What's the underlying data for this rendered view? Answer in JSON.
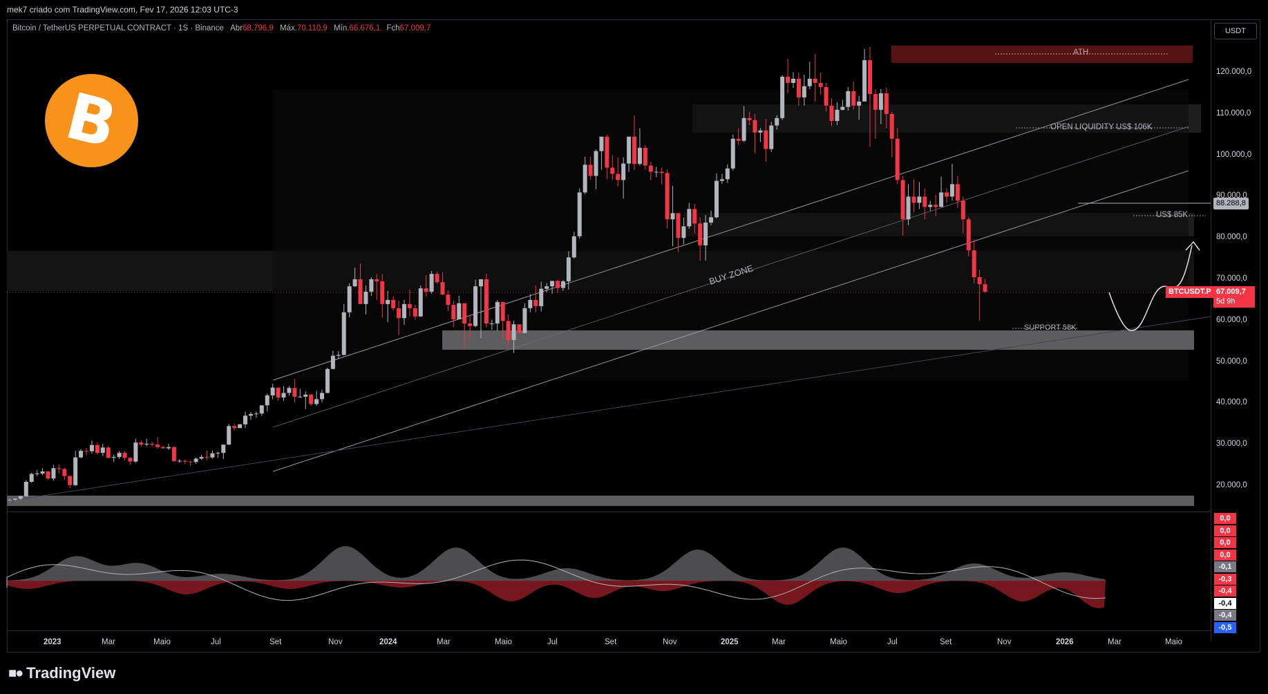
{
  "header": {
    "author_line": "mek7 criado com TradingView.com, Fev 17, 2026 12:03 UTC-3"
  },
  "symbol_line": {
    "name": "Bitcoin / TetherUS PERPETUAL CONTRACT · 1S · Binance",
    "open_label": "Abr",
    "open_value": "68.796,9",
    "high_label": "Máx.",
    "high_value": "70.110,9",
    "low_label": "Mín.",
    "low_value": "66.676,1",
    "close_label": "Fch",
    "close_value": "67.009,7"
  },
  "price_axis": {
    "unit": "USDT",
    "labels": [
      "120.000,0",
      "110.000,0",
      "100.000,0",
      "90.000,0",
      "80.000,0",
      "70.000,0",
      "60.000,0",
      "50.000,0",
      "40.000,0",
      "30.000,0",
      "20.000,0"
    ]
  },
  "tags": {
    "level_88": "88.288,8",
    "symbol": "BTCUSDT.P",
    "last_price": "67.009,7",
    "countdown": "5d 9h"
  },
  "annotations": {
    "ath": "ATH",
    "open_liquidity": "OPEN LIQUIDITY US$ 106K",
    "us85k": "US$ 85K",
    "buy_zone": "BUY ZONE",
    "support": "SUPPORT 58K"
  },
  "time_axis": {
    "labels": [
      "2023",
      "Mar",
      "Maio",
      "Jul",
      "Set",
      "Nov",
      "2024",
      "Mar",
      "Maio",
      "Jul",
      "Set",
      "Nov",
      "2025",
      "Mar",
      "Maio",
      "Jul",
      "Set",
      "Nov",
      "2026",
      "Mar",
      "Maio"
    ]
  },
  "oscillator": {
    "values": [
      "0,0",
      "0,0",
      "0,0",
      "0,0",
      "-0,1",
      "-0,3",
      "-0,4",
      "-0,4",
      "-0,4",
      "-0,5"
    ],
    "colors": [
      "#f23645",
      "#f23645",
      "#f23645",
      "#f23645",
      "#787b86",
      "#f23645",
      "#f23645",
      "#ffffff",
      "#787b86",
      "#2962ff"
    ]
  },
  "logo": {
    "brand": "TradingView",
    "coin_symbol": "B"
  },
  "colors": {
    "up": "#b2b5be",
    "down": "#f23645",
    "bg": "#000000",
    "btc": "#f7931a"
  },
  "chart_data": {
    "type": "candlestick",
    "interval": "1 week",
    "ylim": [
      15000,
      127000
    ],
    "weeks_from": "2022-12-26",
    "candles": [
      [
        16.5,
        16.6,
        16.5,
        16.9
      ],
      [
        16.6,
        16.9,
        16.5,
        17.0
      ],
      [
        16.9,
        17.5,
        16.6,
        17.7
      ],
      [
        17.5,
        21.0,
        17.4,
        21.4
      ],
      [
        21.0,
        22.9,
        20.8,
        23.2
      ],
      [
        22.9,
        23.0,
        22.4,
        23.9
      ],
      [
        23.0,
        23.5,
        22.6,
        24.3
      ],
      [
        23.5,
        21.8,
        21.5,
        23.6
      ],
      [
        21.8,
        24.3,
        21.3,
        25.1
      ],
      [
        24.3,
        24.1,
        23.0,
        25.2
      ],
      [
        24.1,
        22.4,
        21.5,
        24.4
      ],
      [
        22.4,
        20.2,
        19.5,
        22.6
      ],
      [
        20.2,
        26.9,
        20.0,
        28.5
      ],
      [
        26.9,
        28.5,
        26.7,
        28.9
      ],
      [
        28.5,
        28.4,
        27.4,
        29.2
      ],
      [
        28.4,
        29.9,
        27.8,
        31.0
      ],
      [
        29.9,
        28.0,
        27.6,
        30.5
      ],
      [
        28.0,
        29.3,
        27.2,
        30.2
      ],
      [
        29.3,
        26.8,
        26.7,
        29.6
      ],
      [
        26.8,
        27.0,
        25.8,
        27.6
      ],
      [
        27.0,
        28.0,
        26.5,
        28.4
      ],
      [
        28.0,
        26.8,
        26.3,
        28.4
      ],
      [
        26.8,
        25.9,
        25.1,
        27.0
      ],
      [
        25.9,
        30.5,
        25.6,
        31.4
      ],
      [
        30.5,
        30.0,
        29.5,
        31.0
      ],
      [
        30.0,
        30.2,
        29.6,
        31.4
      ],
      [
        30.2,
        30.0,
        29.6,
        30.7
      ],
      [
        30.0,
        29.4,
        29.0,
        31.8
      ],
      [
        29.4,
        29.1,
        29.1,
        29.7
      ],
      [
        29.1,
        29.4,
        28.7,
        30.2
      ],
      [
        29.4,
        26.0,
        25.8,
        29.6
      ],
      [
        26.0,
        26.1,
        25.6,
        26.5
      ],
      [
        26.1,
        25.9,
        25.3,
        26.3
      ],
      [
        25.9,
        25.8,
        24.9,
        26.1
      ],
      [
        25.8,
        26.6,
        25.4,
        26.9
      ],
      [
        26.6,
        27.0,
        26.3,
        27.5
      ],
      [
        27.0,
        26.9,
        26.3,
        28.6
      ],
      [
        26.9,
        27.9,
        26.6,
        28.6
      ],
      [
        27.9,
        28.0,
        26.8,
        28.3
      ],
      [
        28.0,
        30.0,
        26.5,
        30.0
      ],
      [
        30.0,
        34.5,
        29.9,
        35.0
      ],
      [
        34.5,
        34.0,
        33.5,
        35.1
      ],
      [
        34.0,
        34.9,
        34.0,
        35.0
      ],
      [
        34.9,
        37.0,
        34.0,
        38.0
      ],
      [
        37.0,
        37.4,
        36.0,
        37.9
      ],
      [
        37.4,
        37.5,
        36.5,
        38.0
      ],
      [
        37.5,
        39.5,
        37.0,
        39.2
      ],
      [
        39.5,
        41.9,
        38.0,
        42.3
      ],
      [
        41.9,
        43.8,
        41.0,
        44.7
      ],
      [
        43.8,
        41.4,
        40.6,
        43.4
      ],
      [
        41.4,
        42.5,
        40.6,
        44.1
      ],
      [
        42.5,
        43.7,
        41.8,
        44.2
      ],
      [
        43.7,
        41.6,
        40.2,
        45.9
      ],
      [
        41.6,
        41.6,
        41.3,
        43.5
      ],
      [
        41.6,
        42.1,
        38.6,
        42.9
      ],
      [
        42.1,
        39.8,
        39.4,
        42.3
      ],
      [
        39.8,
        41.0,
        39.4,
        43.0
      ],
      [
        41.0,
        42.5,
        40.2,
        43.3
      ],
      [
        42.5,
        48.3,
        42.4,
        48.6
      ],
      [
        48.3,
        51.5,
        48.2,
        52.7
      ],
      [
        51.5,
        51.7,
        50.8,
        52.6
      ],
      [
        51.7,
        62.0,
        51.6,
        64.0
      ],
      [
        62.0,
        68.3,
        60.8,
        69.0
      ],
      [
        68.3,
        70.0,
        68.1,
        72.8
      ],
      [
        70.0,
        64.0,
        64.0,
        73.8
      ],
      [
        64.0,
        67.0,
        61.5,
        68.5
      ],
      [
        67.0,
        70.0,
        66.0,
        70.5
      ],
      [
        70.0,
        69.5,
        65.0,
        71.3
      ],
      [
        69.5,
        64.0,
        60.7,
        71.3
      ],
      [
        64.0,
        65.0,
        59.6,
        67.2
      ],
      [
        65.0,
        63.0,
        62.4,
        65.9
      ],
      [
        63.0,
        60.6,
        56.5,
        64.8
      ],
      [
        60.6,
        64.0,
        59.0,
        65.0
      ],
      [
        64.0,
        63.0,
        61.0,
        67.5
      ],
      [
        63.0,
        61.0,
        60.2,
        63.8
      ],
      [
        61.0,
        67.8,
        60.9,
        68.5
      ],
      [
        67.8,
        67.0,
        65.8,
        71.0
      ],
      [
        67.0,
        71.3,
        66.5,
        72.0
      ],
      [
        71.3,
        69.3,
        68.9,
        71.9
      ],
      [
        69.3,
        66.3,
        66.2,
        71.7
      ],
      [
        66.3,
        63.8,
        62.3,
        67.3
      ],
      [
        63.8,
        60.3,
        58.4,
        64.8
      ],
      [
        60.3,
        64.2,
        60.4,
        66.0
      ],
      [
        64.2,
        59.3,
        53.5,
        64.2
      ],
      [
        59.3,
        58.7,
        55.8,
        61.4
      ],
      [
        58.7,
        68.3,
        58.4,
        69.9
      ],
      [
        68.3,
        70.0,
        55.8,
        70.0
      ],
      [
        70.0,
        59.3,
        58.4,
        71.4
      ],
      [
        59.3,
        59.3,
        57.8,
        60.2
      ],
      [
        59.3,
        64.5,
        57.5,
        65.0
      ],
      [
        64.5,
        59.9,
        55.7,
        64.6
      ],
      [
        59.9,
        55.3,
        53.7,
        61.5
      ],
      [
        55.3,
        59.1,
        52.2,
        60.0
      ],
      [
        59.1,
        57.0,
        56.7,
        58.0
      ],
      [
        57.0,
        63.0,
        56.9,
        64.2
      ],
      [
        63.0,
        65.0,
        62.0,
        66.4
      ],
      [
        65.0,
        63.5,
        62.0,
        68.5
      ],
      [
        63.5,
        67.7,
        62.2,
        69.4
      ],
      [
        67.7,
        68.3,
        66.8,
        69.1
      ],
      [
        68.3,
        69.6,
        66.5,
        69.5
      ],
      [
        69.6,
        67.9,
        66.7,
        69.9
      ],
      [
        67.9,
        69.5,
        67.2,
        69.8
      ],
      [
        69.5,
        75.3,
        67.5,
        76.8
      ],
      [
        75.3,
        80.4,
        75.0,
        81.5
      ],
      [
        80.4,
        91.0,
        79.8,
        92.0
      ],
      [
        91.0,
        97.7,
        90.6,
        99.6
      ],
      [
        97.7,
        95.0,
        94.1,
        99.6
      ],
      [
        95.0,
        101.0,
        91.8,
        101.4
      ],
      [
        101.0,
        104.5,
        96.5,
        104.5
      ],
      [
        104.5,
        97.0,
        94.2,
        105.0
      ],
      [
        97.0,
        95.5,
        94.0,
        100.0
      ],
      [
        95.5,
        94.0,
        92.5,
        99.5
      ],
      [
        94.0,
        98.0,
        89.5,
        99.5
      ],
      [
        98.0,
        104.5,
        96.0,
        104.2
      ],
      [
        104.5,
        97.9,
        96.4,
        109.6
      ],
      [
        97.9,
        101.8,
        97.5,
        106.5
      ],
      [
        101.8,
        97.5,
        96.5,
        102.5
      ],
      [
        97.5,
        96.0,
        94.0,
        98.4
      ],
      [
        96.0,
        96.0,
        94.7,
        97.2
      ],
      [
        96.0,
        95.7,
        93.0,
        97.0
      ],
      [
        95.7,
        84.5,
        82.3,
        96.6
      ],
      [
        84.5,
        86.0,
        78.0,
        92.6
      ],
      [
        86.0,
        80.0,
        76.6,
        86.0
      ],
      [
        80.0,
        82.8,
        78.5,
        84.9
      ],
      [
        82.8,
        87.0,
        82.2,
        88.5
      ],
      [
        87.0,
        83.5,
        81.1,
        88.2
      ],
      [
        83.5,
        78.2,
        74.5,
        85.0
      ],
      [
        78.2,
        83.7,
        74.5,
        85.5
      ],
      [
        83.7,
        85.0,
        83.1,
        86.6
      ],
      [
        85.0,
        93.8,
        84.7,
        95.6
      ],
      [
        93.8,
        94.2,
        93.1,
        95.5
      ],
      [
        94.2,
        96.8,
        93.3,
        97.8
      ],
      [
        96.8,
        104.0,
        96.3,
        105.0
      ],
      [
        104.0,
        103.5,
        102.5,
        106.5
      ],
      [
        103.5,
        109.0,
        103.2,
        111.9
      ],
      [
        109.0,
        108.5,
        107.3,
        110.5
      ],
      [
        108.5,
        105.5,
        100.5,
        110.0
      ],
      [
        105.5,
        106.0,
        103.2,
        106.6
      ],
      [
        106.0,
        101.5,
        98.4,
        108.8
      ],
      [
        101.5,
        107.2,
        100.8,
        108.1
      ],
      [
        107.2,
        109.0,
        106.2,
        109.7
      ],
      [
        109.0,
        119.0,
        108.5,
        119.4
      ],
      [
        119.0,
        117.5,
        115.0,
        123.3
      ],
      [
        117.5,
        118.5,
        116.3,
        120.1
      ],
      [
        118.5,
        114.0,
        112.0,
        120.0
      ],
      [
        114.0,
        116.7,
        112.0,
        119.5
      ],
      [
        116.7,
        118.5,
        116.0,
        122.6
      ],
      [
        118.5,
        117.5,
        113.0,
        124.5
      ],
      [
        117.5,
        116.5,
        114.7,
        120.0
      ],
      [
        116.5,
        112.0,
        110.6,
        117.5
      ],
      [
        112.0,
        108.3,
        107.0,
        113.7
      ],
      [
        108.3,
        111.0,
        107.3,
        112.8
      ],
      [
        111.0,
        111.7,
        110.8,
        113.4
      ],
      [
        111.7,
        115.5,
        110.8,
        116.5
      ],
      [
        115.5,
        112.0,
        111.0,
        117.8
      ],
      [
        112.0,
        113.0,
        108.6,
        114.4
      ],
      [
        113.0,
        123.0,
        113.0,
        125.7
      ],
      [
        123.0,
        114.8,
        102.0,
        126.3
      ],
      [
        114.8,
        111.0,
        104.0,
        116.0
      ],
      [
        111.0,
        115.0,
        107.5,
        116.0
      ],
      [
        115.0,
        110.0,
        106.5,
        116.4
      ],
      [
        110.0,
        104.0,
        99.5,
        110.5
      ],
      [
        104.0,
        94.0,
        93.0,
        106.6
      ],
      [
        94.0,
        84.5,
        80.6,
        95.0
      ],
      [
        84.5,
        90.0,
        83.1,
        93.0
      ],
      [
        90.0,
        88.5,
        86.2,
        94.2
      ],
      [
        88.5,
        90.0,
        87.0,
        93.5
      ],
      [
        90.0,
        87.5,
        84.5,
        91.9
      ],
      [
        87.5,
        88.0,
        86.5,
        89.0
      ],
      [
        88.0,
        87.5,
        85.3,
        90.4
      ],
      [
        87.5,
        91.0,
        87.5,
        94.8
      ],
      [
        91.0,
        90.0,
        88.5,
        92.0
      ],
      [
        90.0,
        93.0,
        89.0,
        97.9
      ],
      [
        93.0,
        89.0,
        87.2,
        95.0
      ],
      [
        89.0,
        84.5,
        81.1,
        90.0
      ],
      [
        84.5,
        77.0,
        75.5,
        85.0
      ],
      [
        77.0,
        70.5,
        69.0,
        79.6
      ],
      [
        70.5,
        68.8,
        60.0,
        72.3
      ],
      [
        68.8,
        67.0,
        66.7,
        70.1
      ]
    ]
  }
}
